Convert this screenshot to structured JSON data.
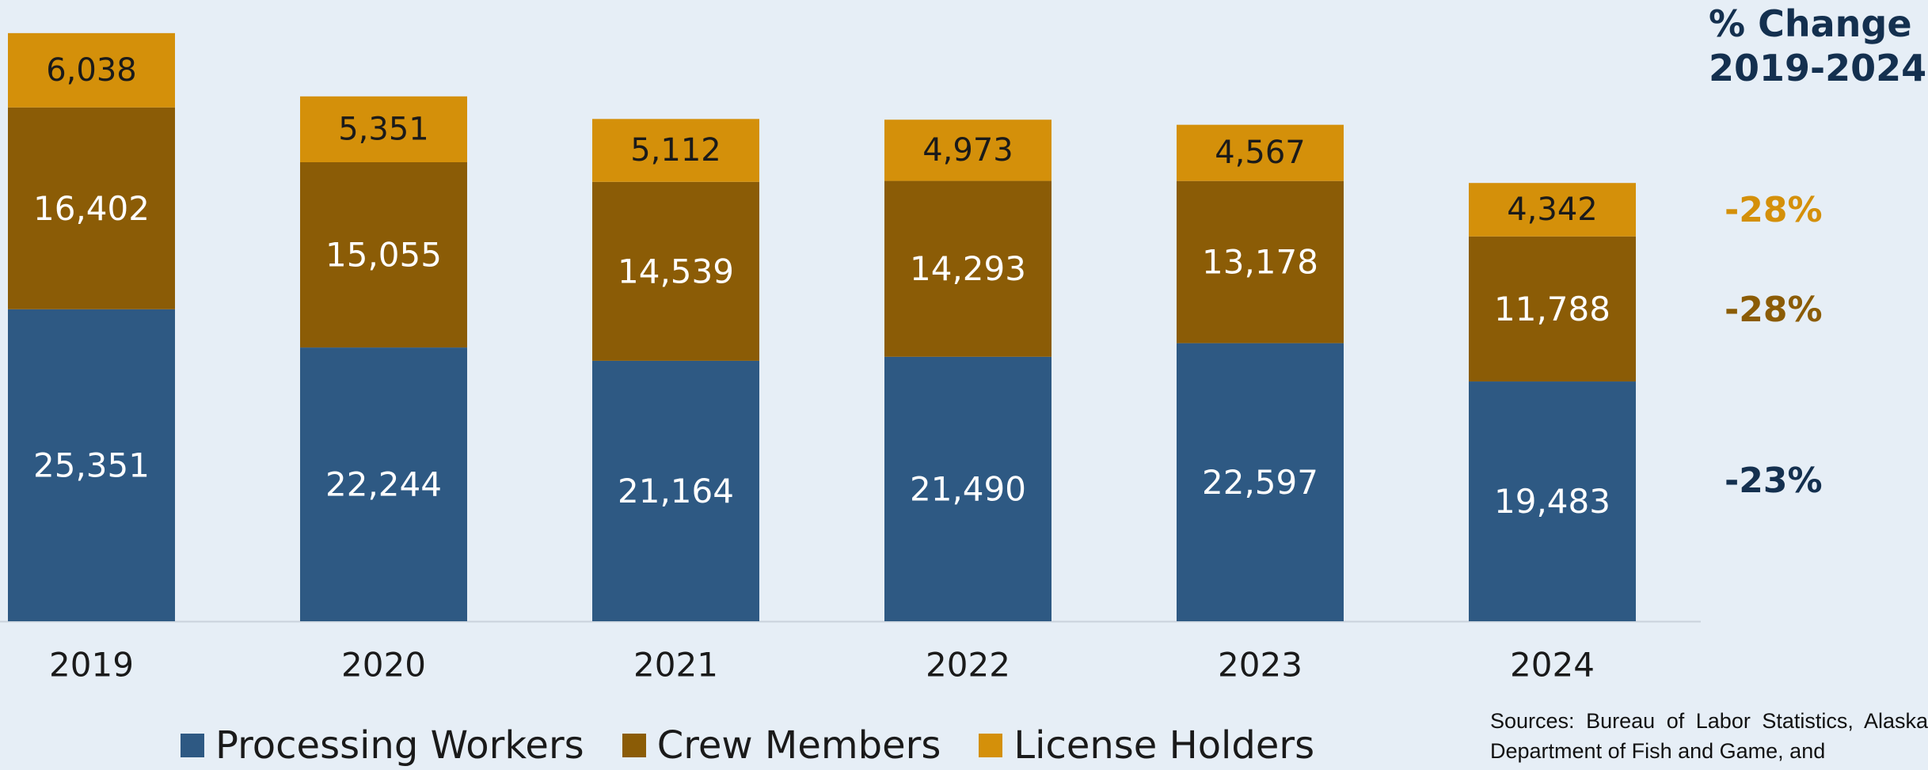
{
  "chart_data": {
    "type": "bar",
    "stacked": true,
    "categories": [
      "2019",
      "2020",
      "2021",
      "2022",
      "2023",
      "2024"
    ],
    "series": [
      {
        "name": "Processing Workers",
        "color": "#2e5983",
        "values": [
          25351,
          22244,
          21164,
          21490,
          22597,
          19483
        ]
      },
      {
        "name": "Crew Members",
        "color": "#8b5c06",
        "values": [
          16402,
          15055,
          14539,
          14293,
          13178,
          11788
        ]
      },
      {
        "name": "License Holders",
        "color": "#d4900a",
        "values": [
          6038,
          5351,
          5112,
          4973,
          4567,
          4342
        ]
      }
    ],
    "ylim": [
      0,
      55000
    ],
    "grid": false,
    "legend": "bottom"
  },
  "change_panel": {
    "title_line1": "% Change",
    "title_line2": "2019-2024",
    "values": [
      {
        "series": "License Holders",
        "label": "-28%",
        "color": "#d4900a"
      },
      {
        "series": "Crew Members",
        "label": "-28%",
        "color": "#8b5c06"
      },
      {
        "series": "Processing Workers",
        "label": "-23%",
        "color": "#14304f"
      }
    ]
  },
  "sources_text": "Sources: Bureau of Labor Statistics, Alaska Department of Fish and Game, and"
}
